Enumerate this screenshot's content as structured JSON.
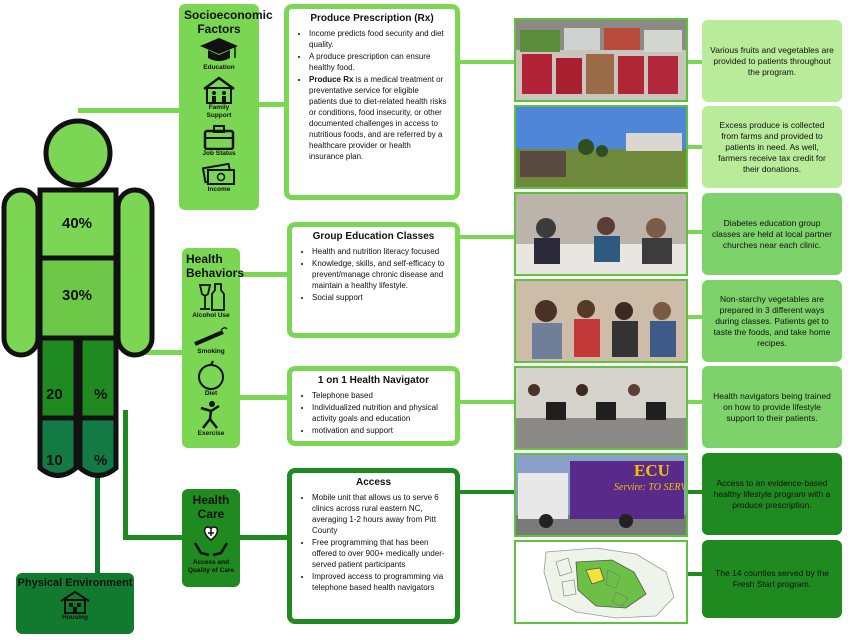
{
  "human_figure": {
    "pct_40": "40%",
    "pct_30": "30%",
    "pct_20": "20",
    "pct_20_sign": "%",
    "pct_10": "10",
    "pct_10_sign": "%"
  },
  "categories": {
    "socioeconomic": {
      "title": "Socioeconomic Factors",
      "items": [
        "Education",
        "Family Support",
        "Job Status",
        "Income"
      ]
    },
    "health_behaviors": {
      "title": "Health Behaviors",
      "items": [
        "Alcohol Use",
        "Smoking",
        "Diet",
        "Exercise"
      ]
    },
    "health_care": {
      "title": "Health Care",
      "items": [
        "Access and Quality of Care"
      ]
    },
    "physical_environment": {
      "title": "Physical Environment",
      "items": [
        "Housing"
      ]
    }
  },
  "programs": {
    "produce_rx": {
      "title": "Produce Prescription (Rx)",
      "bullets": [
        "Income predicts food security and diet quality.",
        "A produce prescription can ensure healthy food.",
        "is a medical treatment or preventative service for eligible patients due to diet-related health risks or conditions, food insecurity, or other documented challenges in access to nutritious foods, and are referred by a healthcare provider or health insurance plan."
      ],
      "bold_lead": "Produce Rx"
    },
    "group_education": {
      "title": "Group Education Classes",
      "bullets": [
        "Health and nutrition literacy focused",
        "Knowledge, skills, and self-efficacy to prevent/manage chronic disease and maintain a healthy lifestyle.",
        "Social support"
      ]
    },
    "navigator": {
      "title": "1 on 1 Health Navigator",
      "bullets": [
        "Telephone based",
        "Individualized nutrition and physical activity goals and education",
        "motivation and support"
      ]
    },
    "access": {
      "title": "Access",
      "bullets": [
        "Mobile unit that allows us to serve 6 clinics across rural eastern NC, averaging 1-2 hours away from Pitt County",
        "Free programming that has been offered to over 900+ medically under-served patient participants",
        "Improved access to programming via telephone based health navigators"
      ]
    }
  },
  "captions": [
    "Various fruits and vegetables are provided to patients throughout the program.",
    "Excess produce is collected from farms and provided to patients in need. As well, farmers receive tax credit for their donations.",
    "Diabetes education group classes are held at local partner churches near each clinic.",
    "Non-starchy vegetables are prepared in 3 different ways during classes. Patients get to taste the foods, and take home recipes.",
    "Health navigators being trained on how to provide lifestyle support to their patients.",
    "Access to an evidence-based healthy lifestyle program with a produce prescription.",
    "The 14 counties served by the Fresh Start program."
  ],
  "trailer": {
    "logo": "ECU",
    "script": "Servire: TO SERVE"
  },
  "colors": {
    "light_green": "#7ad653",
    "mid_green": "#5cc43a",
    "dark_green": "#1f8a1f",
    "darker_green": "#127a2e",
    "forest": "#0f7a44",
    "pale_green": "#b8ec9a",
    "caption_green": "#7dd36a"
  }
}
